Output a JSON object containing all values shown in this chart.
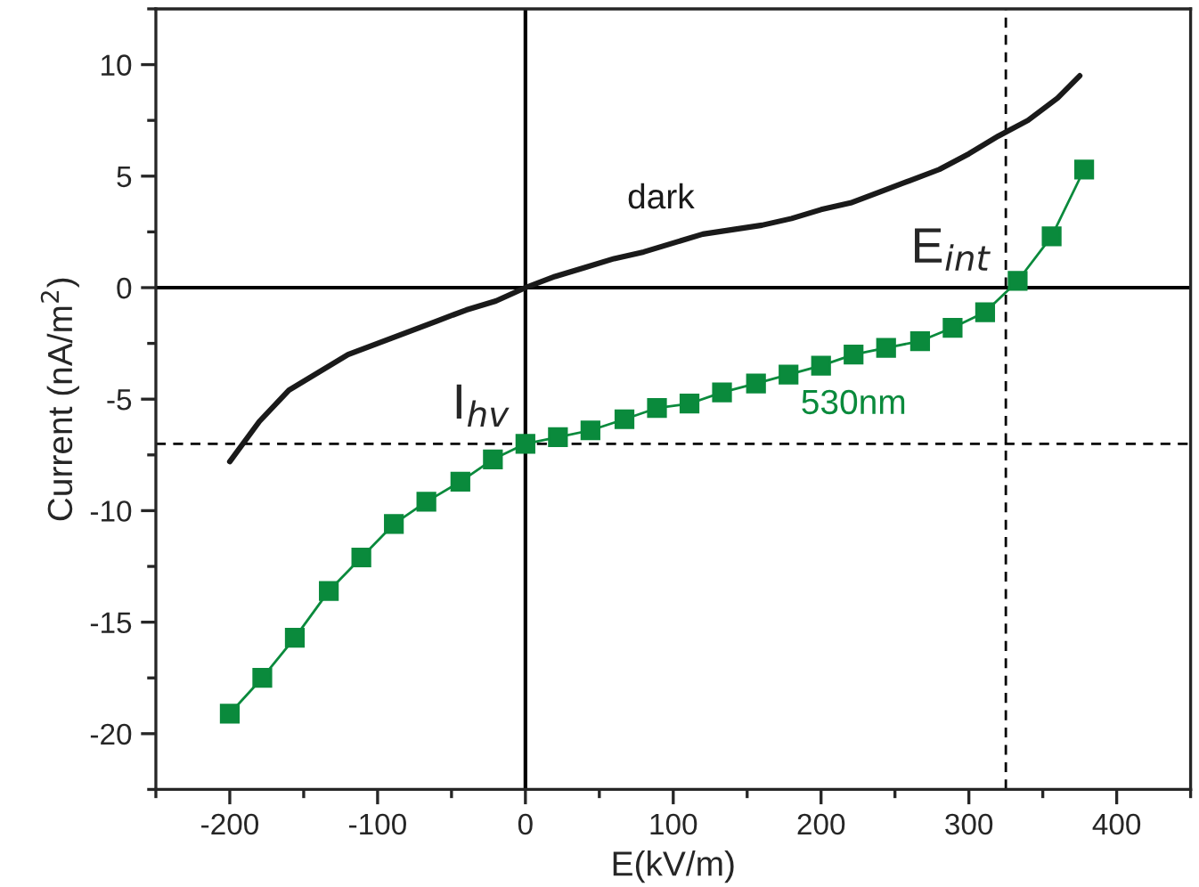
{
  "chart_data": {
    "type": "line",
    "xlabel": "E(kV/m)",
    "ylabel": "Current (nA/m$^{2}$)",
    "xlim": [
      -250,
      450
    ],
    "ylim": [
      -22.5,
      12.5
    ],
    "xticks": [
      -200,
      -100,
      0,
      100,
      200,
      300,
      400
    ],
    "yticks": [
      -20,
      -15,
      -10,
      -5,
      0,
      5,
      10
    ],
    "grid": false,
    "legend": false,
    "series": [
      {
        "name": "dark",
        "color": "#1a1a1a",
        "marker": "none",
        "x": [
          -200,
          -180,
          -160,
          -140,
          -120,
          -100,
          -80,
          -60,
          -40,
          -20,
          0,
          20,
          40,
          60,
          80,
          100,
          120,
          140,
          160,
          180,
          200,
          220,
          240,
          260,
          280,
          300,
          320,
          340,
          360,
          375
        ],
        "values": [
          -7.8,
          -6.0,
          -4.6,
          -3.8,
          -3.0,
          -2.5,
          -2.0,
          -1.5,
          -1.0,
          -0.6,
          0,
          0.5,
          0.9,
          1.3,
          1.6,
          2.0,
          2.4,
          2.6,
          2.8,
          3.1,
          3.5,
          3.8,
          4.3,
          4.8,
          5.3,
          6.0,
          6.8,
          7.5,
          8.5,
          9.5
        ]
      },
      {
        "name": "530nm",
        "color": "#0a8a3c",
        "marker": "square",
        "x": [
          -200,
          -178,
          -156,
          -133,
          -111,
          -89,
          -67,
          -44,
          -22,
          0,
          22,
          44,
          67,
          89,
          111,
          133,
          156,
          178,
          200,
          222,
          244,
          267,
          289,
          311,
          333,
          356,
          378
        ],
        "values": [
          -19.1,
          -17.5,
          -15.7,
          -13.6,
          -12.1,
          -10.6,
          -9.6,
          -8.7,
          -7.7,
          -7.0,
          -6.7,
          -6.4,
          -5.9,
          -5.4,
          -5.2,
          -4.7,
          -4.3,
          -3.9,
          -3.5,
          -3.0,
          -2.7,
          -2.4,
          -1.8,
          -1.1,
          0.3,
          2.3,
          5.3
        ]
      }
    ],
    "ref_lines": [
      {
        "axis": "x",
        "value": 0,
        "line_style": "solid",
        "color": "#000000"
      },
      {
        "axis": "y",
        "value": 0,
        "line_style": "solid",
        "color": "#000000"
      },
      {
        "axis": "x",
        "value": 325,
        "line_style": "dashed",
        "color": "#000000"
      },
      {
        "axis": "y",
        "value": -7,
        "line_style": "dashed",
        "color": "#000000"
      }
    ],
    "annotations": [
      {
        "text": "E$_{int}$",
        "x": 325,
        "y": 0
      },
      {
        "text": "I$_{hv}$",
        "x": 0,
        "y": -7
      }
    ]
  }
}
